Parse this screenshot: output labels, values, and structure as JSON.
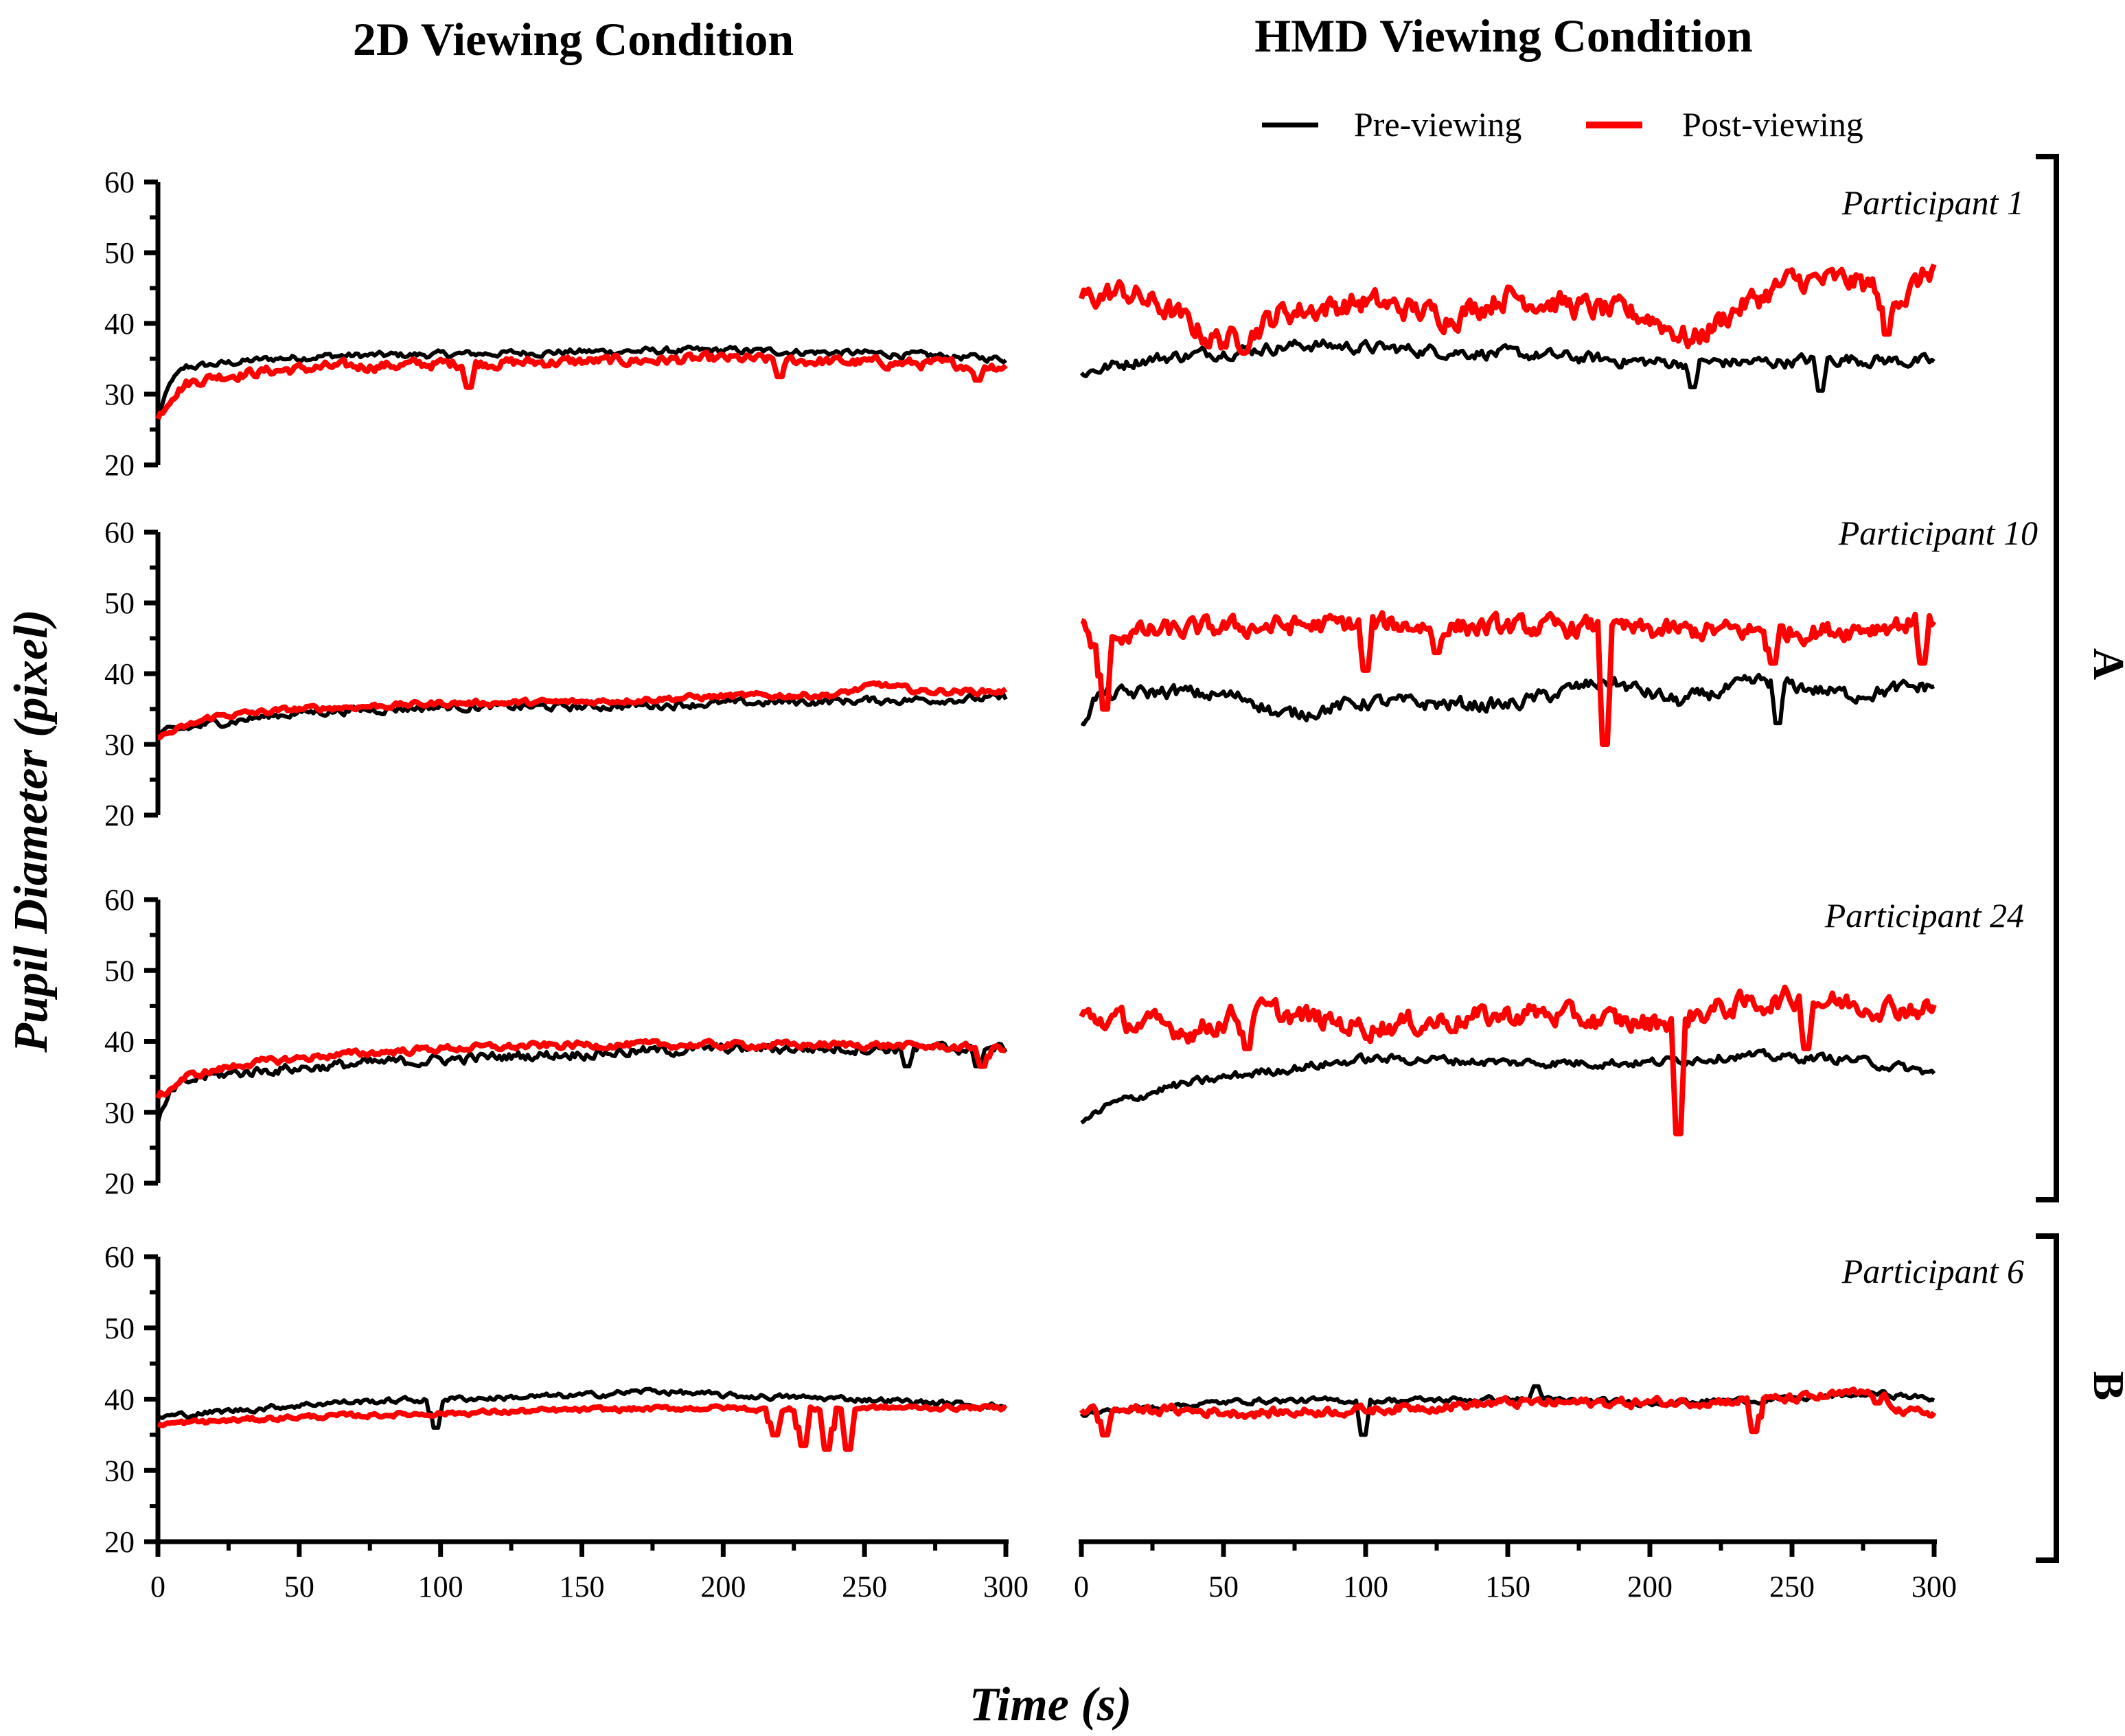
{
  "titles": {
    "left": "2D Viewing Condition",
    "right": "HMD Viewing Condition",
    "ylabel": "Pupil Diameter (pixel)",
    "xlabel": "Time (s)"
  },
  "legend": {
    "pre": "Pre-viewing",
    "post": "Post-viewing"
  },
  "groups": [
    {
      "label": "A",
      "rows": [
        0,
        1,
        2
      ]
    },
    {
      "label": "B",
      "rows": [
        3
      ]
    }
  ],
  "colors": {
    "pre": "#000000",
    "post": "#ff0000"
  },
  "chart_data": [
    {
      "type": "line",
      "condition": "2D",
      "participant": "Participant 1",
      "show_label": false,
      "xlim": [
        0,
        300
      ],
      "ylim": [
        20,
        60
      ],
      "yticks": [
        20,
        30,
        40,
        50,
        60
      ],
      "series": [
        {
          "name": "Pre-viewing",
          "points": [
            [
              0,
              27
            ],
            [
              5,
              32
            ],
            [
              10,
              33.8
            ],
            [
              20,
              34.2
            ],
            [
              40,
              35
            ],
            [
              60,
              35.4
            ],
            [
              100,
              35.6
            ],
            [
              150,
              36
            ],
            [
              200,
              36.2
            ],
            [
              250,
              35.8
            ],
            [
              300,
              35
            ]
          ],
          "noise": 0.6
        },
        {
          "name": "Post-viewing",
          "points": [
            [
              0,
              26.5
            ],
            [
              5,
              30
            ],
            [
              10,
              31.5
            ],
            [
              20,
              32.5
            ],
            [
              40,
              33.3
            ],
            [
              60,
              33.8
            ],
            [
              100,
              34.3
            ],
            [
              150,
              34.6
            ],
            [
              200,
              35
            ],
            [
              250,
              34.5
            ],
            [
              300,
              34
            ]
          ],
          "noise": 0.9,
          "dips": [
            [
              110,
              31
            ],
            [
              220,
              32.5
            ],
            [
              290,
              32
            ]
          ]
        }
      ]
    },
    {
      "type": "line",
      "condition": "HMD",
      "participant": "Participant 1",
      "show_label": true,
      "xlim": [
        0,
        300
      ],
      "ylim": [
        20,
        60
      ],
      "yticks": [],
      "series": [
        {
          "name": "Pre-viewing",
          "points": [
            [
              0,
              33
            ],
            [
              20,
              34.8
            ],
            [
              50,
              36
            ],
            [
              80,
              37
            ],
            [
              120,
              36.2
            ],
            [
              160,
              35.5
            ],
            [
              200,
              34.5
            ],
            [
              240,
              34.5
            ],
            [
              270,
              35
            ],
            [
              300,
              34.5
            ]
          ],
          "noise": 1.1,
          "dips": [
            [
              215,
              31
            ],
            [
              260,
              30.5
            ]
          ]
        },
        {
          "name": "Post-viewing",
          "points": [
            [
              0,
              43.5
            ],
            [
              15,
              44.5
            ],
            [
              30,
              42
            ],
            [
              45,
              38
            ],
            [
              55,
              37.5
            ],
            [
              70,
              41.5
            ],
            [
              100,
              43
            ],
            [
              130,
              41
            ],
            [
              150,
              44
            ],
            [
              180,
              42
            ],
            [
              200,
              41
            ],
            [
              215,
              37.5
            ],
            [
              230,
              42
            ],
            [
              250,
              46
            ],
            [
              270,
              46
            ],
            [
              290,
              44
            ],
            [
              300,
              48
            ]
          ],
          "noise": 2.2,
          "dips": [
            [
              283,
              38.5
            ]
          ]
        }
      ]
    },
    {
      "type": "line",
      "condition": "2D",
      "participant": "Participant 10",
      "show_label": false,
      "xlim": [
        0,
        300
      ],
      "ylim": [
        20,
        60
      ],
      "yticks": [
        20,
        30,
        40,
        50,
        60
      ],
      "series": [
        {
          "name": "Pre-viewing",
          "points": [
            [
              0,
              31.5
            ],
            [
              20,
              33
            ],
            [
              50,
              34.5
            ],
            [
              100,
              35.3
            ],
            [
              150,
              35.3
            ],
            [
              200,
              35.8
            ],
            [
              250,
              36.2
            ],
            [
              300,
              36.5
            ]
          ],
          "noise": 0.7
        },
        {
          "name": "Post-viewing",
          "points": [
            [
              0,
              31
            ],
            [
              20,
              34
            ],
            [
              50,
              35
            ],
            [
              100,
              35.8
            ],
            [
              150,
              36
            ],
            [
              200,
              36.8
            ],
            [
              240,
              37
            ],
            [
              255,
              38.5
            ],
            [
              270,
              37.5
            ],
            [
              300,
              37.5
            ]
          ],
          "noise": 0.5
        }
      ]
    },
    {
      "type": "line",
      "condition": "HMD",
      "participant": "Participant 10",
      "show_label": true,
      "xlim": [
        0,
        300
      ],
      "ylim": [
        20,
        60
      ],
      "yticks": [],
      "series": [
        {
          "name": "Pre-viewing",
          "points": [
            [
              0,
              33
            ],
            [
              5,
              36.8
            ],
            [
              30,
              37.5
            ],
            [
              60,
              36.5
            ],
            [
              70,
              34
            ],
            [
              100,
              36
            ],
            [
              150,
              35.5
            ],
            [
              185,
              39
            ],
            [
              210,
              36
            ],
            [
              240,
              39
            ],
            [
              270,
              37
            ],
            [
              300,
              38.3
            ]
          ],
          "noise": 1.3,
          "dips": [
            [
              245,
              33
            ]
          ]
        },
        {
          "name": "Post-viewing",
          "points": [
            [
              0,
              47.5
            ],
            [
              5,
              43
            ],
            [
              10,
              45.5
            ],
            [
              50,
              46.5
            ],
            [
              100,
              47
            ],
            [
              150,
              46.5
            ],
            [
              180,
              46.5
            ],
            [
              200,
              46
            ],
            [
              230,
              46
            ],
            [
              260,
              46
            ],
            [
              300,
              47.5
            ]
          ],
          "noise": 1.8,
          "dips": [
            [
              8,
              35
            ],
            [
              100,
              40.5
            ],
            [
              125,
              43
            ],
            [
              184,
              30
            ],
            [
              243,
              41.5
            ],
            [
              296,
              41.5
            ]
          ]
        }
      ]
    },
    {
      "type": "line",
      "condition": "2D",
      "participant": "Participant 24",
      "show_label": false,
      "xlim": [
        0,
        300
      ],
      "ylim": [
        20,
        60
      ],
      "yticks": [
        20,
        30,
        40,
        50,
        60
      ],
      "series": [
        {
          "name": "Pre-viewing",
          "points": [
            [
              0,
              28.5
            ],
            [
              5,
              33
            ],
            [
              15,
              35
            ],
            [
              40,
              36
            ],
            [
              80,
              37
            ],
            [
              130,
              38
            ],
            [
              200,
              39
            ],
            [
              250,
              39
            ],
            [
              300,
              39
            ]
          ],
          "noise": 0.9,
          "dips": [
            [
              265,
              36.5
            ],
            [
              290,
              36.5
            ]
          ]
        },
        {
          "name": "Post-viewing",
          "points": [
            [
              0,
              32
            ],
            [
              10,
              35
            ],
            [
              30,
              36.8
            ],
            [
              60,
              38
            ],
            [
              100,
              39
            ],
            [
              150,
              39.5
            ],
            [
              200,
              39.5
            ],
            [
              250,
              39.5
            ],
            [
              300,
              39
            ]
          ],
          "noise": 0.6,
          "dips": [
            [
              292,
              36.5
            ]
          ]
        }
      ]
    },
    {
      "type": "line",
      "condition": "HMD",
      "participant": "Participant 24",
      "show_label": true,
      "xlim": [
        0,
        300
      ],
      "ylim": [
        20,
        60
      ],
      "yticks": [],
      "series": [
        {
          "name": "Pre-viewing",
          "points": [
            [
              0,
              28.5
            ],
            [
              10,
              31
            ],
            [
              30,
              33.5
            ],
            [
              60,
              35.5
            ],
            [
              100,
              37.5
            ],
            [
              120,
              37.5
            ],
            [
              150,
              37
            ],
            [
              200,
              37
            ],
            [
              230,
              38
            ],
            [
              270,
              37.5
            ],
            [
              300,
              35.5
            ]
          ],
          "noise": 0.8
        },
        {
          "name": "Post-viewing",
          "points": [
            [
              0,
              43.5
            ],
            [
              20,
              42.5
            ],
            [
              40,
              41.5
            ],
            [
              60,
              44.5
            ],
            [
              100,
              42
            ],
            [
              130,
              43
            ],
            [
              160,
              44
            ],
            [
              180,
              43
            ],
            [
              200,
              42.5
            ],
            [
              230,
              45
            ],
            [
              250,
              46
            ],
            [
              280,
              45
            ],
            [
              300,
              44.5
            ]
          ],
          "noise": 2.0,
          "dips": [
            [
              58,
              39
            ],
            [
              210,
              27
            ],
            [
              255,
              39
            ]
          ]
        }
      ]
    },
    {
      "type": "line",
      "condition": "2D",
      "participant": "Participant 6",
      "show_label": false,
      "xlim": [
        0,
        300
      ],
      "ylim": [
        20,
        60
      ],
      "yticks": [
        20,
        30,
        40,
        50,
        60
      ],
      "series": [
        {
          "name": "Pre-viewing",
          "points": [
            [
              0,
              37.5
            ],
            [
              30,
              38.5
            ],
            [
              60,
              39.5
            ],
            [
              100,
              40
            ],
            [
              150,
              40.5
            ],
            [
              175,
              41.2
            ],
            [
              200,
              40.5
            ],
            [
              250,
              40
            ],
            [
              300,
              39
            ]
          ],
          "noise": 0.5,
          "dips": [
            [
              98,
              36
            ]
          ]
        },
        {
          "name": "Post-viewing",
          "points": [
            [
              0,
              36.5
            ],
            [
              50,
              37.5
            ],
            [
              100,
              38
            ],
            [
              150,
              38.5
            ],
            [
              200,
              38.8
            ],
            [
              215,
              38.5
            ],
            [
              250,
              38.8
            ],
            [
              300,
              38.8
            ]
          ],
          "noise": 0.4,
          "dips": [
            [
              218,
              35
            ],
            [
              228,
              33.5
            ],
            [
              237,
              33
            ],
            [
              244,
              33
            ]
          ]
        }
      ]
    },
    {
      "type": "line",
      "condition": "HMD",
      "participant": "Participant 6",
      "show_label": true,
      "xlim": [
        0,
        300
      ],
      "ylim": [
        20,
        60
      ],
      "yticks": [],
      "series": [
        {
          "name": "Pre-viewing",
          "points": [
            [
              0,
              38
            ],
            [
              30,
              39
            ],
            [
              60,
              39.8
            ],
            [
              100,
              39.8
            ],
            [
              150,
              40
            ],
            [
              200,
              39.5
            ],
            [
              250,
              40
            ],
            [
              280,
              40.8
            ],
            [
              300,
              40
            ]
          ],
          "noise": 0.5,
          "dips": [
            [
              99,
              35
            ],
            [
              160,
              41.8
            ]
          ]
        },
        {
          "name": "Post-viewing",
          "points": [
            [
              0,
              38.5
            ],
            [
              30,
              38.5
            ],
            [
              60,
              38
            ],
            [
              100,
              38.5
            ],
            [
              150,
              39.5
            ],
            [
              200,
              39.5
            ],
            [
              250,
              40
            ],
            [
              280,
              41
            ],
            [
              290,
              38
            ],
            [
              300,
              38.2
            ]
          ],
          "noise": 0.8,
          "dips": [
            [
              8,
              35
            ],
            [
              237,
              35.5
            ],
            [
              280,
              39.5
            ]
          ]
        }
      ]
    }
  ],
  "x_ticks": [
    0,
    50,
    100,
    150,
    200,
    250,
    300
  ]
}
